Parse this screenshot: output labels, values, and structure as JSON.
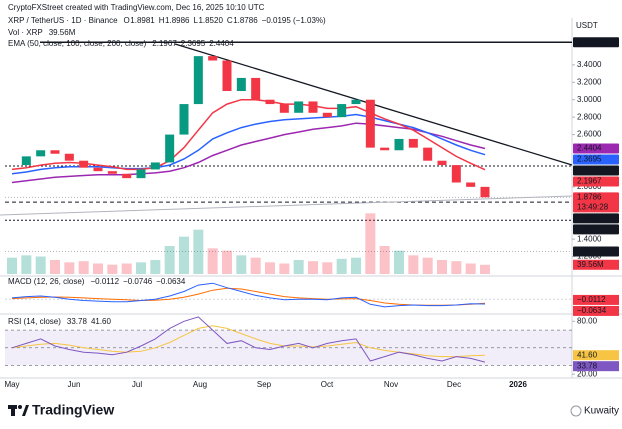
{
  "header": {
    "credit": "CryptoFXStreet created with TradingView.com, Dec 16, 2025 10:10 UTC"
  },
  "chart_data": {
    "type": "candlestick",
    "symbol": "XRP / TetherUS · 1D · Binance",
    "ohlc": [
      {
        "key": "O",
        "value": "1.8981"
      },
      {
        "key": "H",
        "value": "1.8986"
      },
      {
        "key": "L",
        "value": "1.8520"
      },
      {
        "key": "C",
        "value": "1.8786"
      }
    ],
    "change": "−0.0195 (−1.03%)",
    "volume_legend": {
      "name": "Vol · XRP",
      "value": "39.56M"
    },
    "ema_legend": {
      "name": "EMA (50, close, 100, close, 200, close)",
      "values": [
        "2.1967",
        "2.3695",
        "2.4404"
      ]
    },
    "unit": "USDT",
    "up_color": "#089981",
    "down_color": "#f23645",
    "series": [
      {
        "name": "Close",
        "color": "#131722",
        "values": [
          2.25,
          2.35,
          2.42,
          2.38,
          2.3,
          2.22,
          2.18,
          2.15,
          2.1,
          2.2,
          2.28,
          2.6,
          2.95,
          3.5,
          3.45,
          3.1,
          3.25,
          3.0,
          2.95,
          2.85,
          2.98,
          2.85,
          2.8,
          2.95,
          3.0,
          2.45,
          2.42,
          2.55,
          2.45,
          2.3,
          2.25,
          2.05,
          2.0,
          1.88
        ]
      },
      {
        "name": "EMA 50",
        "color": "#f23645",
        "values": [
          2.2,
          2.22,
          2.25,
          2.27,
          2.28,
          2.27,
          2.25,
          2.23,
          2.2,
          2.2,
          2.22,
          2.3,
          2.45,
          2.65,
          2.85,
          2.95,
          3.0,
          3.0,
          2.98,
          2.95,
          2.95,
          2.93,
          2.9,
          2.9,
          2.92,
          2.85,
          2.78,
          2.72,
          2.65,
          2.55,
          2.45,
          2.35,
          2.27,
          2.1967
        ]
      },
      {
        "name": "EMA 100",
        "color": "#2962ff",
        "values": [
          2.15,
          2.17,
          2.2,
          2.22,
          2.23,
          2.23,
          2.23,
          2.22,
          2.21,
          2.21,
          2.22,
          2.25,
          2.32,
          2.42,
          2.55,
          2.62,
          2.68,
          2.72,
          2.75,
          2.77,
          2.78,
          2.79,
          2.8,
          2.81,
          2.83,
          2.8,
          2.76,
          2.72,
          2.68,
          2.62,
          2.55,
          2.48,
          2.42,
          2.3695
        ]
      },
      {
        "name": "EMA 200",
        "color": "#9c27b0",
        "values": [
          2.05,
          2.07,
          2.09,
          2.11,
          2.12,
          2.13,
          2.14,
          2.14,
          2.14,
          2.15,
          2.16,
          2.18,
          2.22,
          2.28,
          2.36,
          2.42,
          2.48,
          2.52,
          2.56,
          2.6,
          2.63,
          2.66,
          2.68,
          2.7,
          2.73,
          2.72,
          2.7,
          2.68,
          2.66,
          2.62,
          2.58,
          2.53,
          2.48,
          2.4404
        ]
      }
    ],
    "volume": {
      "values": [
        70,
        80,
        75,
        60,
        50,
        55,
        45,
        40,
        45,
        50,
        60,
        120,
        160,
        190,
        110,
        100,
        80,
        70,
        50,
        45,
        60,
        55,
        50,
        65,
        70,
        260,
        120,
        100,
        80,
        70,
        60,
        55,
        45,
        39.56
      ],
      "max": 300
    },
    "x_labels": [
      "May",
      "Jun",
      "Jul",
      "Aug",
      "Sep",
      "Oct",
      "Nov",
      "Dec",
      "2026"
    ],
    "ylim": [
      1.0,
      3.8
    ],
    "yticks": [
      {
        "value": 1.2,
        "label": "1.2000"
      },
      {
        "value": 1.4,
        "label": "1.4000"
      },
      {
        "value": 2.0,
        "label": "2.0000"
      },
      {
        "value": 2.6,
        "label": "2.6000"
      },
      {
        "value": 2.8,
        "label": "2.8000"
      },
      {
        "value": 3.0,
        "label": "3.0000"
      },
      {
        "value": 3.2,
        "label": "3.2000"
      },
      {
        "value": 3.4,
        "label": "3.4000"
      }
    ],
    "price_labels": [
      {
        "value": 3.6588,
        "label": "3.6588",
        "color": "#131722",
        "line": "solid"
      },
      {
        "value": 2.4404,
        "label": "2.4404",
        "color": "#9c27b0",
        "line": null
      },
      {
        "value": 2.3695,
        "label": "2.3695",
        "color": "#2962ff",
        "line": null
      },
      {
        "value": 2.24,
        "label": "2.2400",
        "color": "#131722",
        "line": "dotted"
      },
      {
        "value": 2.1967,
        "label": "2.1967",
        "color": "#f23645",
        "line": null
      },
      {
        "value": 1.8786,
        "label": "1.8786",
        "color": "#f23645",
        "line": "faint",
        "sub": "13:49:28"
      },
      {
        "value": 1.8254,
        "label": "1.8254",
        "color": "#131722",
        "line": "dashed"
      },
      {
        "value": 1.6175,
        "label": "1.6175",
        "color": "#131722",
        "line": "dotted"
      },
      {
        "value": 1.2575,
        "label": "1.2575",
        "color": "#131722",
        "line": "faint"
      }
    ],
    "volume_label": {
      "value": 39.56,
      "label": "39.56M",
      "color": "#f23645"
    },
    "macd": {
      "title": "MACD (12, 26, close)",
      "legend": [
        {
          "text": "−0.0112",
          "color": "#f23645"
        },
        {
          "text": "−0.0746",
          "color": "#2962ff"
        },
        {
          "text": "−0.0634",
          "color": "#ff6d00"
        }
      ],
      "macd": {
        "color": "#2962ff",
        "values": [
          0.02,
          0.04,
          0.05,
          0.03,
          0,
          -0.02,
          -0.03,
          -0.04,
          -0.04,
          -0.02,
          0,
          0.05,
          0.12,
          0.22,
          0.25,
          0.18,
          0.12,
          0.06,
          0.02,
          -0.01,
          0,
          0,
          -0.01,
          0.02,
          0.03,
          -0.08,
          -0.12,
          -0.1,
          -0.09,
          -0.1,
          -0.1,
          -0.09,
          -0.07,
          -0.0746
        ]
      },
      "signal": {
        "color": "#ff6d00",
        "values": [
          0.01,
          0.02,
          0.03,
          0.035,
          0.03,
          0.02,
          0.01,
          0,
          -0.01,
          -0.02,
          -0.015,
          0,
          0.03,
          0.08,
          0.14,
          0.17,
          0.16,
          0.12,
          0.08,
          0.04,
          0.02,
          0.01,
          0,
          0.005,
          0.01,
          -0.02,
          -0.06,
          -0.08,
          -0.09,
          -0.095,
          -0.095,
          -0.09,
          -0.08,
          -0.0634
        ]
      },
      "ylim": [
        -0.2,
        0.3
      ],
      "labels": [
        {
          "value": -0.0112,
          "label": "−0.0112",
          "color": "#f23645"
        },
        {
          "value": -0.0634,
          "label": "−0.0634",
          "color": "#f23645"
        }
      ]
    },
    "rsi": {
      "title": "RSI (14, close)",
      "legend": [
        {
          "text": "33.78",
          "color": "#7e57c2"
        },
        {
          "text": "41.60",
          "color": "#f7c543"
        }
      ],
      "rsi": {
        "color": "#7e57c2",
        "values": [
          50,
          55,
          60,
          52,
          48,
          45,
          44,
          42,
          45,
          52,
          60,
          72,
          80,
          85,
          70,
          55,
          58,
          50,
          48,
          52,
          55,
          50,
          55,
          58,
          60,
          35,
          40,
          45,
          42,
          38,
          35,
          40,
          38,
          33.78
        ]
      },
      "ma": {
        "color": "#f7c543",
        "values": [
          50,
          52,
          54,
          55,
          53,
          50,
          48,
          46,
          45,
          46,
          50,
          56,
          64,
          72,
          75,
          72,
          66,
          60,
          55,
          52,
          52,
          51,
          52,
          54,
          56,
          50,
          47,
          45,
          43,
          41,
          40,
          40,
          41,
          41.6
        ]
      },
      "ylim": [
        18,
        86
      ],
      "yticks": [
        {
          "value": 80,
          "label": "80.00"
        },
        {
          "value": 20,
          "label": "20.00"
        }
      ],
      "band": [
        30,
        70
      ],
      "levels": [
        70,
        50,
        30
      ],
      "labels": [
        {
          "value": 41.6,
          "label": "41.60",
          "color": "#f7c543"
        },
        {
          "value": 33.78,
          "label": "33.78",
          "color": "#7e57c2"
        }
      ]
    }
  },
  "footer": {
    "brand": "TradingView",
    "watermark": "Kuwaity"
  }
}
